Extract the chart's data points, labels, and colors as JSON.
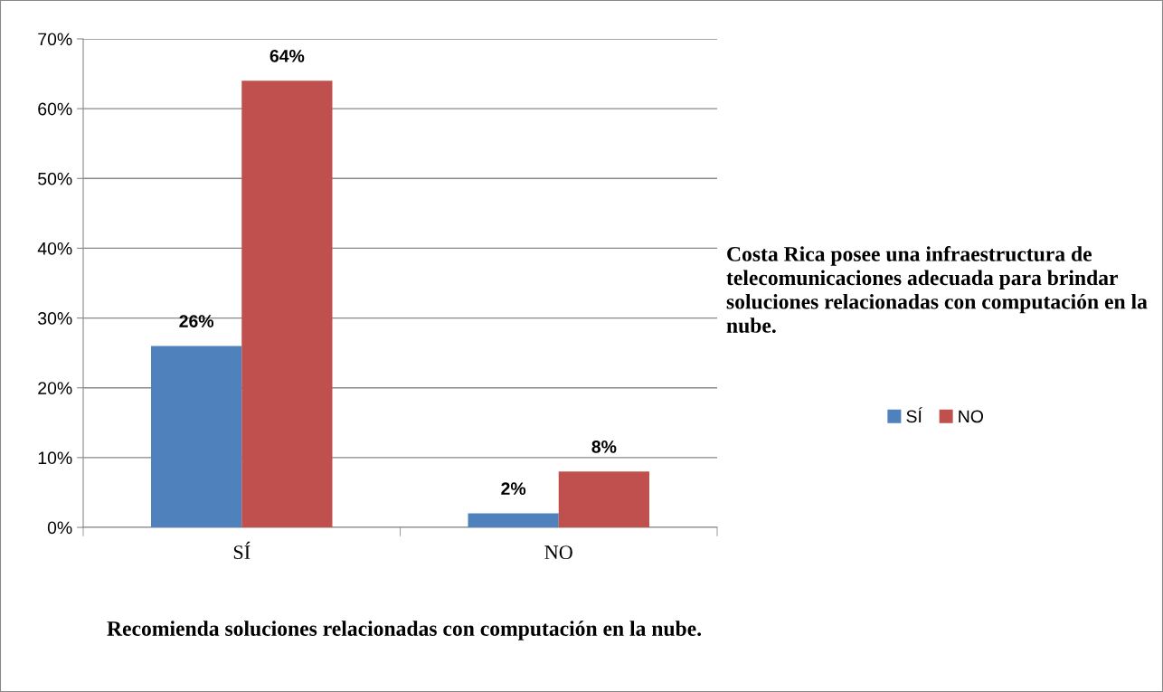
{
  "chart_data": {
    "type": "bar",
    "title": "Costa Rica posee una infraestructura de telecomunicaciones adecuada para brindar soluciones relacionadas con computación en la nube.",
    "xlabel": "Recomienda soluciones relacionadas con computación en la nube.",
    "categories": [
      "SÍ",
      "NO"
    ],
    "series": [
      {
        "name": "SÍ",
        "color": "#4f81bd",
        "values": [
          26,
          2
        ],
        "value_labels": [
          "26%",
          "2%"
        ]
      },
      {
        "name": "NO",
        "color": "#c0504d",
        "values": [
          64,
          8
        ],
        "value_labels": [
          "64%",
          "8%"
        ]
      }
    ],
    "ylim": [
      0,
      70
    ],
    "yticks": [
      {
        "value": 0,
        "label": "0%"
      },
      {
        "value": 10,
        "label": "10%"
      },
      {
        "value": 20,
        "label": "20%"
      },
      {
        "value": 30,
        "label": "30%"
      },
      {
        "value": 40,
        "label": "40%"
      },
      {
        "value": 50,
        "label": "50%"
      },
      {
        "value": 60,
        "label": "60%"
      },
      {
        "value": 70,
        "label": "70%"
      }
    ],
    "grid": "y",
    "legend": "right"
  }
}
